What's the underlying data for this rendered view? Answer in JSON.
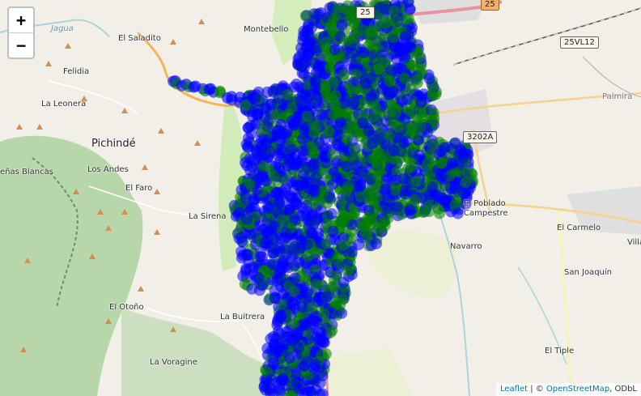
{
  "map": {
    "zoom_in_label": "+",
    "zoom_out_label": "−",
    "attribution": {
      "leaflet": "Leaflet",
      "separator": " | © ",
      "osm": "OpenStreetMap",
      "tail": ", ODbL"
    },
    "places": {
      "jagua": "Jagua",
      "el_saladito": "El Saladito",
      "felidia": "Felidia",
      "la_leonera": "La Leonera",
      "pichinde": "Pichindé",
      "penas_blancas": "eñas Blancas",
      "los_andes": "Los Andes",
      "el_faro": "El Faro",
      "la_sirena": "La Sirena",
      "el_otono": "El Otoño",
      "la_buitrera": "La Buitrera",
      "la_voragine": "La Voragine",
      "montebello": "Montebello",
      "palmira": "Palmira",
      "el_poblado_campestre": "El Poblado Campestre",
      "navarro": "Navarro",
      "el_carmelo": "El Carmelo",
      "villa": "Villa",
      "san_joaquin": "San Joaquín",
      "el_tiple": "El Tiple"
    },
    "road_shields": {
      "r25": "25",
      "r25b": "25",
      "r25vl12": "25VL12",
      "r3202a": "3202A"
    },
    "colors": {
      "blue_points": "#0000ff",
      "green_points": "#008000",
      "background": "#f2efe9",
      "forest": "#add19e"
    },
    "layers": [
      "blue point markers",
      "green point markers"
    ]
  }
}
